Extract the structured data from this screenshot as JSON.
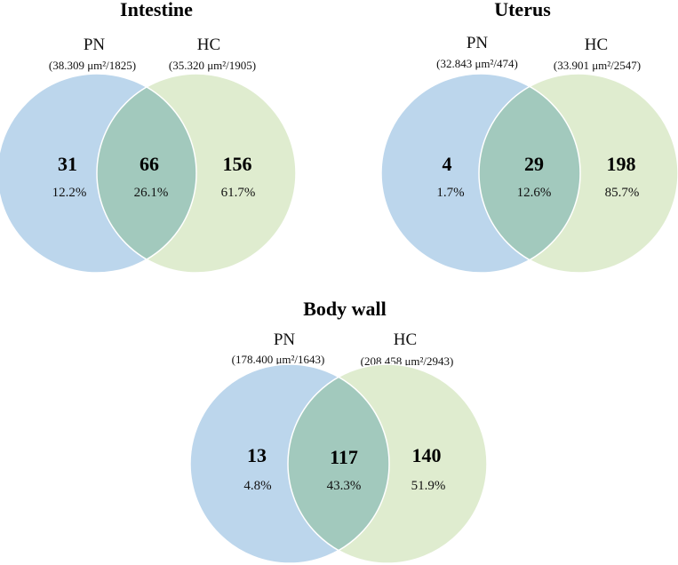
{
  "colors": {
    "left": "#bcd6ec",
    "right": "#dfeccf",
    "overlap": "#a2c9bd"
  },
  "diagrams": [
    {
      "title": "Intestine",
      "left_label": "PN",
      "left_sub": "(38.309 μm²/1825)",
      "right_label": "HC",
      "right_sub": "(35.320 μm²/1905)",
      "left_only": "31",
      "left_pct": "12.2%",
      "both": "66",
      "both_pct": "26.1%",
      "right_only": "156",
      "right_pct": "61.7%"
    },
    {
      "title": "Uterus",
      "left_label": "PN",
      "left_sub": "(32.843 μm²/474)",
      "right_label": "HC",
      "right_sub": "(33.901 μm²/2547)",
      "left_only": "4",
      "left_pct": "1.7%",
      "both": "29",
      "both_pct": "12.6%",
      "right_only": "198",
      "right_pct": "85.7%"
    },
    {
      "title": "Body wall",
      "left_label": "PN",
      "left_sub": "(178.400 μm²/1643)",
      "right_label": "HC",
      "right_sub": "(208.458 μm²/2943)",
      "left_only": "13",
      "left_pct": "4.8%",
      "both": "117",
      "both_pct": "43.3%",
      "right_only": "140",
      "right_pct": "51.9%"
    }
  ]
}
